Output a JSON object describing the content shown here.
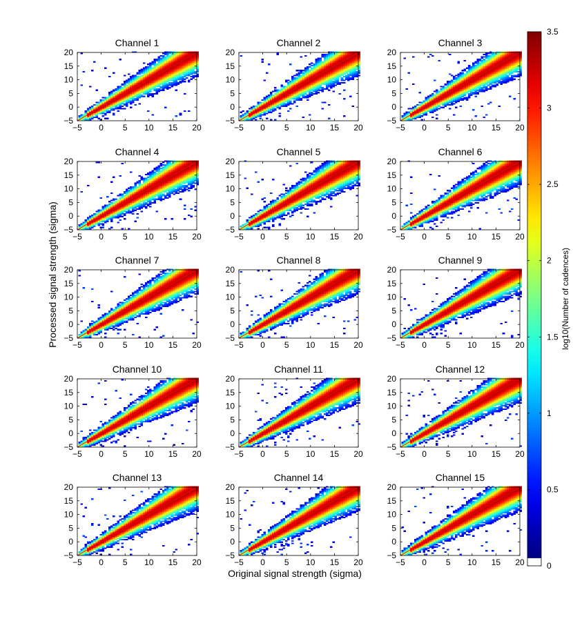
{
  "chart_data": {
    "type": "heatmap",
    "description_kind": "2D histogram grid",
    "xlabel": "Original signal strength (sigma)",
    "ylabel": "Processed signal strength (sigma)",
    "xlim": [
      -5,
      20
    ],
    "ylim": [
      -5,
      20
    ],
    "xticks": [
      -5,
      0,
      5,
      10,
      15,
      20
    ],
    "yticks": [
      -5,
      0,
      5,
      10,
      15,
      20
    ],
    "tick_labels": [
      "−5",
      "0",
      "5",
      "10",
      "15",
      "20"
    ],
    "panels": [
      {
        "title": "Channel 1"
      },
      {
        "title": "Channel 2"
      },
      {
        "title": "Channel 3"
      },
      {
        "title": "Channel 4"
      },
      {
        "title": "Channel 5"
      },
      {
        "title": "Channel 6"
      },
      {
        "title": "Channel 7"
      },
      {
        "title": "Channel 8"
      },
      {
        "title": "Channel 9"
      },
      {
        "title": "Channel 10"
      },
      {
        "title": "Channel 11"
      },
      {
        "title": "Channel 12"
      },
      {
        "title": "Channel 13"
      },
      {
        "title": "Channel 14"
      },
      {
        "title": "Channel 15"
      }
    ],
    "identity_line": {
      "from": [
        -5,
        -5
      ],
      "to": [
        20,
        20
      ],
      "color": "#ff0000"
    },
    "colorbar": {
      "label": "log10(Number of cadences)",
      "min": 0,
      "max": 3.5,
      "ticks": [
        0,
        0.5,
        1,
        1.5,
        2,
        2.5,
        3,
        3.5
      ],
      "tick_labels": [
        "0",
        "0.5",
        "1",
        "1.5",
        "2",
        "2.5",
        "3",
        "3.5"
      ],
      "colormap": "jet"
    }
  }
}
